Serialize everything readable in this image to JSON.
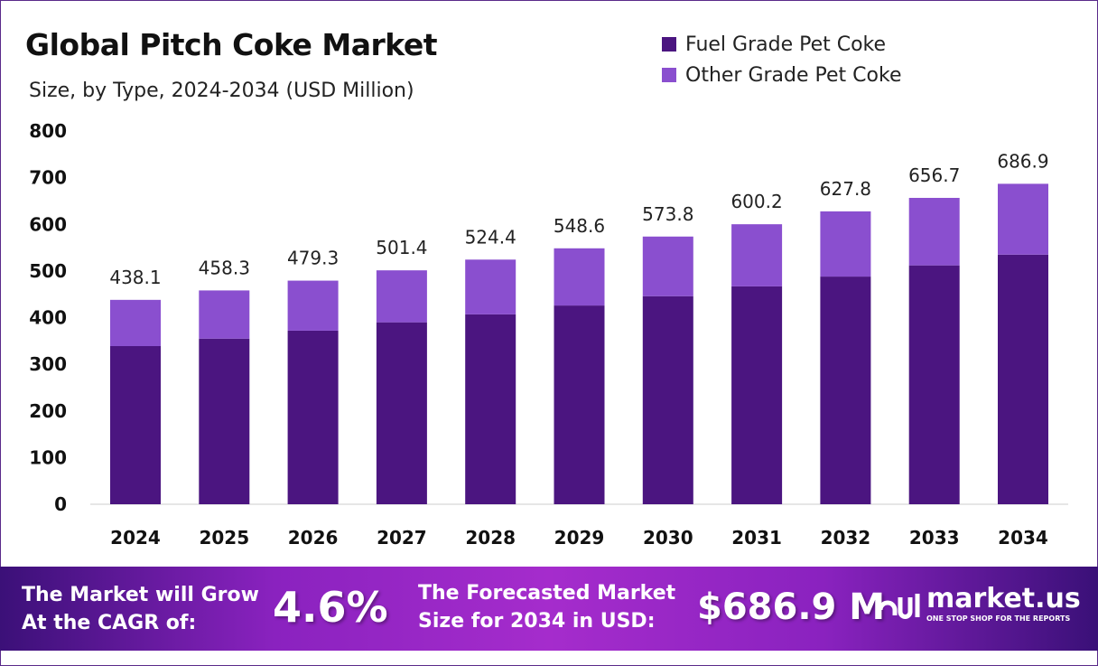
{
  "chart_data": {
    "type": "bar",
    "stacked": true,
    "title": "Global Pitch Coke Market",
    "subtitle": "Size, by Type, 2024-2034 (USD Million)",
    "categories": [
      "2024",
      "2025",
      "2026",
      "2027",
      "2028",
      "2029",
      "2030",
      "2031",
      "2032",
      "2033",
      "2034"
    ],
    "series": [
      {
        "name": "Fuel Grade Pet Coke",
        "color": "#4b1580",
        "values": [
          339,
          355,
          372,
          390,
          407,
          426,
          446,
          467,
          488,
          512,
          535
        ]
      },
      {
        "name": "Other Grade Pet Coke",
        "color": "#8a4fcf",
        "values": [
          99.1,
          103.3,
          107.3,
          111.4,
          117.4,
          122.6,
          127.8,
          133.2,
          139.8,
          144.7,
          151.9
        ]
      }
    ],
    "totals": [
      "438.1",
      "458.3",
      "479.3",
      "501.4",
      "524.4",
      "548.6",
      "573.8",
      "600.2",
      "627.8",
      "656.7",
      "686.9"
    ],
    "ylim": [
      0,
      800
    ],
    "yticks": [
      "0",
      "100",
      "200",
      "300",
      "400",
      "500",
      "600",
      "700",
      "800"
    ],
    "grid": false,
    "legend": "top-right"
  },
  "banner": {
    "cagr_label_1": "The Market will Grow",
    "cagr_label_2": "At the CAGR of:",
    "cagr_value": "4.6%",
    "forecast_label_1": "The Forecasted Market",
    "forecast_label_2": "Size for 2034 in USD:",
    "forecast_value": "$686.9 M",
    "logo_text": "market.us",
    "logo_tagline": "ONE STOP SHOP FOR THE REPORTS"
  }
}
